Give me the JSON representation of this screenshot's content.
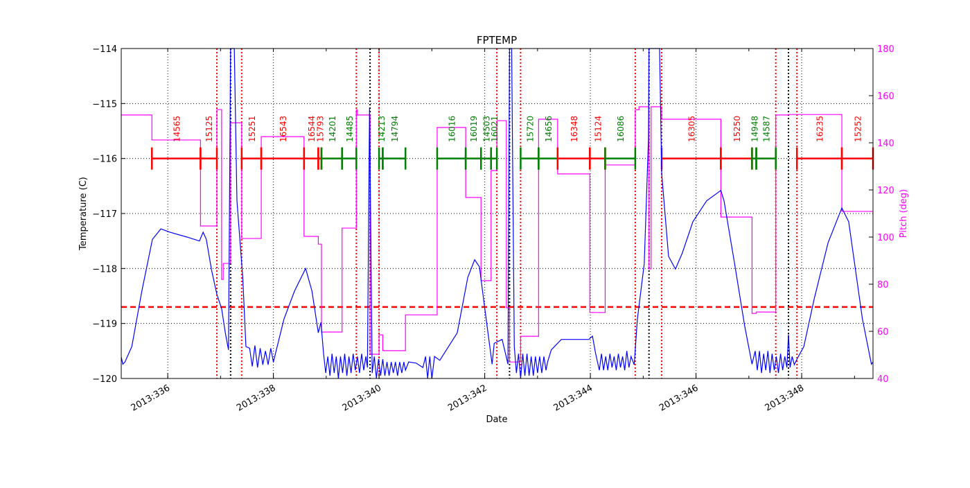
{
  "chart_data": {
    "type": "line",
    "title": "FPTEMP",
    "xlabel": "Date",
    "ylabel": "Temperature (C)",
    "y2label": "Pitch (deg)",
    "xlim": [
      335.12,
      349.35
    ],
    "ylim": [
      -120,
      -114
    ],
    "y2lim": [
      40,
      180
    ],
    "grid": true,
    "x_ticks": [
      {
        "v": 336,
        "label": "2013:336"
      },
      {
        "v": 338,
        "label": "2013:338"
      },
      {
        "v": 340,
        "label": "2013:340"
      },
      {
        "v": 342,
        "label": "2013:342"
      },
      {
        "v": 344,
        "label": "2013:344"
      },
      {
        "v": 346,
        "label": "2013:346"
      },
      {
        "v": 348,
        "label": "2013:348"
      }
    ],
    "y_ticks": [
      -114,
      -115,
      -116,
      -117,
      -118,
      -119,
      -120
    ],
    "y2_ticks": [
      40,
      60,
      80,
      100,
      120,
      140,
      160,
      180
    ],
    "colors": {
      "temperature": "#0000ff",
      "pitch": "#ff00ff",
      "limit": "#ff0000",
      "obsid_red": "#ff0000",
      "obsid_green": "#008000",
      "radzone": "#ff0000",
      "perigee": "#000000"
    },
    "limit_line": -118.7,
    "temperature": [
      [
        335.12,
        -119.61
      ],
      [
        335.15,
        -119.74
      ],
      [
        335.19,
        -119.7
      ],
      [
        335.32,
        -119.42
      ],
      [
        335.51,
        -118.41
      ],
      [
        335.71,
        -117.47
      ],
      [
        335.87,
        -117.28
      ],
      [
        336.04,
        -117.34
      ],
      [
        336.37,
        -117.43
      ],
      [
        336.6,
        -117.5
      ],
      [
        336.67,
        -117.34
      ],
      [
        336.73,
        -117.47
      ],
      [
        336.83,
        -118.03
      ],
      [
        336.93,
        -118.47
      ],
      [
        337.02,
        -118.73
      ],
      [
        337.09,
        -119.17
      ],
      [
        337.15,
        -119.48
      ],
      [
        337.19,
        -113.0
      ],
      [
        337.26,
        -113.0
      ],
      [
        337.31,
        -116.77
      ],
      [
        337.42,
        -118.16
      ],
      [
        337.48,
        -119.42
      ],
      [
        337.55,
        -119.45
      ],
      [
        337.6,
        -119.78
      ],
      [
        337.65,
        -119.4
      ],
      [
        337.7,
        -119.8
      ],
      [
        337.75,
        -119.45
      ],
      [
        337.8,
        -119.75
      ],
      [
        337.85,
        -119.5
      ],
      [
        337.9,
        -119.75
      ],
      [
        337.95,
        -119.45
      ],
      [
        338.0,
        -119.7
      ],
      [
        338.2,
        -118.92
      ],
      [
        338.4,
        -118.41
      ],
      [
        338.61,
        -118.0
      ],
      [
        338.73,
        -118.41
      ],
      [
        338.85,
        -119.17
      ],
      [
        338.9,
        -118.98
      ],
      [
        338.95,
        -119.55
      ],
      [
        338.99,
        -119.9
      ],
      [
        339.03,
        -119.6
      ],
      [
        339.07,
        -119.95
      ],
      [
        339.11,
        -119.55
      ],
      [
        339.15,
        -119.9
      ],
      [
        339.19,
        -119.6
      ],
      [
        339.23,
        -120.0
      ],
      [
        339.27,
        -119.6
      ],
      [
        339.31,
        -119.9
      ],
      [
        339.35,
        -119.55
      ],
      [
        339.39,
        -119.95
      ],
      [
        339.43,
        -119.6
      ],
      [
        339.47,
        -119.9
      ],
      [
        339.51,
        -119.55
      ],
      [
        339.55,
        -119.85
      ],
      [
        339.59,
        -119.6
      ],
      [
        339.63,
        -119.9
      ],
      [
        339.67,
        -119.55
      ],
      [
        339.71,
        -119.85
      ],
      [
        339.75,
        -119.6
      ],
      [
        339.78,
        -119.8
      ],
      [
        339.82,
        -115.07
      ],
      [
        339.87,
        -119.9
      ],
      [
        339.91,
        -119.6
      ],
      [
        339.95,
        -120.0
      ],
      [
        339.99,
        -119.65
      ],
      [
        340.03,
        -119.95
      ],
      [
        340.07,
        -119.65
      ],
      [
        340.11,
        -119.95
      ],
      [
        340.15,
        -119.7
      ],
      [
        340.19,
        -119.95
      ],
      [
        340.23,
        -119.7
      ],
      [
        340.27,
        -119.9
      ],
      [
        340.31,
        -119.7
      ],
      [
        340.35,
        -119.95
      ],
      [
        340.39,
        -119.7
      ],
      [
        340.43,
        -119.9
      ],
      [
        340.47,
        -119.7
      ],
      [
        340.5,
        -119.85
      ],
      [
        340.56,
        -119.7
      ],
      [
        340.7,
        -119.72
      ],
      [
        340.83,
        -119.8
      ],
      [
        340.88,
        -119.6
      ],
      [
        340.92,
        -120.0
      ],
      [
        340.96,
        -119.6
      ],
      [
        341.0,
        -120.0
      ],
      [
        341.05,
        -119.6
      ],
      [
        341.15,
        -119.67
      ],
      [
        341.48,
        -119.17
      ],
      [
        341.68,
        -118.16
      ],
      [
        341.81,
        -117.84
      ],
      [
        341.9,
        -117.97
      ],
      [
        342.01,
        -118.79
      ],
      [
        342.14,
        -119.74
      ],
      [
        342.18,
        -119.36
      ],
      [
        342.33,
        -119.29
      ],
      [
        342.44,
        -119.74
      ],
      [
        342.47,
        -113.0
      ],
      [
        342.51,
        -113.0
      ],
      [
        342.56,
        -119.42
      ],
      [
        342.6,
        -119.9
      ],
      [
        342.64,
        -119.55
      ],
      [
        342.68,
        -120.0
      ],
      [
        342.72,
        -119.55
      ],
      [
        342.76,
        -119.95
      ],
      [
        342.8,
        -119.55
      ],
      [
        342.84,
        -119.95
      ],
      [
        342.88,
        -119.6
      ],
      [
        342.92,
        -119.95
      ],
      [
        342.96,
        -119.6
      ],
      [
        343.0,
        -119.9
      ],
      [
        343.04,
        -119.6
      ],
      [
        343.08,
        -119.9
      ],
      [
        343.12,
        -119.6
      ],
      [
        343.16,
        -119.85
      ],
      [
        343.19,
        -119.7
      ],
      [
        343.26,
        -119.48
      ],
      [
        343.45,
        -119.29
      ],
      [
        343.97,
        -119.29
      ],
      [
        344.04,
        -119.23
      ],
      [
        344.1,
        -119.55
      ],
      [
        344.17,
        -119.85
      ],
      [
        344.21,
        -119.55
      ],
      [
        344.25,
        -119.85
      ],
      [
        344.29,
        -119.6
      ],
      [
        344.33,
        -119.85
      ],
      [
        344.37,
        -119.55
      ],
      [
        344.41,
        -119.8
      ],
      [
        344.45,
        -119.6
      ],
      [
        344.49,
        -119.85
      ],
      [
        344.53,
        -119.55
      ],
      [
        344.57,
        -119.8
      ],
      [
        344.61,
        -119.6
      ],
      [
        344.65,
        -119.85
      ],
      [
        344.69,
        -119.5
      ],
      [
        344.73,
        -119.8
      ],
      [
        344.77,
        -119.6
      ],
      [
        344.83,
        -119.75
      ],
      [
        344.89,
        -118.92
      ],
      [
        345.02,
        -117.91
      ],
      [
        345.1,
        -115.64
      ],
      [
        345.11,
        -113.0
      ],
      [
        345.31,
        -113.0
      ],
      [
        345.35,
        -116.27
      ],
      [
        345.48,
        -117.78
      ],
      [
        345.61,
        -118.01
      ],
      [
        345.74,
        -117.72
      ],
      [
        345.94,
        -117.15
      ],
      [
        346.2,
        -116.77
      ],
      [
        346.47,
        -116.58
      ],
      [
        346.53,
        -116.77
      ],
      [
        346.73,
        -117.91
      ],
      [
        346.92,
        -119.04
      ],
      [
        347.06,
        -119.74
      ],
      [
        347.12,
        -119.5
      ],
      [
        347.16,
        -119.85
      ],
      [
        347.2,
        -119.5
      ],
      [
        347.24,
        -119.9
      ],
      [
        347.28,
        -119.55
      ],
      [
        347.32,
        -119.85
      ],
      [
        347.36,
        -119.5
      ],
      [
        347.4,
        -119.9
      ],
      [
        347.44,
        -119.55
      ],
      [
        347.48,
        -119.85
      ],
      [
        347.52,
        -119.6
      ],
      [
        347.56,
        -119.9
      ],
      [
        347.6,
        -119.55
      ],
      [
        347.64,
        -119.85
      ],
      [
        347.68,
        -119.6
      ],
      [
        347.72,
        -119.8
      ],
      [
        347.75,
        -119.2
      ],
      [
        347.78,
        -119.8
      ],
      [
        347.82,
        -119.6
      ],
      [
        347.86,
        -119.75
      ],
      [
        347.91,
        -119.65
      ],
      [
        348.04,
        -119.42
      ],
      [
        348.24,
        -118.54
      ],
      [
        348.5,
        -117.53
      ],
      [
        348.76,
        -116.9
      ],
      [
        348.89,
        -117.15
      ],
      [
        349.15,
        -118.92
      ],
      [
        349.32,
        -119.74
      ],
      [
        349.35,
        -119.7
      ]
    ],
    "pitch_steps": [
      [
        335.12,
        151.8
      ],
      [
        335.7,
        141.2
      ],
      [
        336.62,
        104.7
      ],
      [
        336.93,
        154.1
      ],
      [
        337.02,
        82
      ],
      [
        337.05,
        88.8
      ],
      [
        337.19,
        148.5
      ],
      [
        337.4,
        99.4
      ],
      [
        337.77,
        142.6
      ],
      [
        338.58,
        100.3
      ],
      [
        338.85,
        97
      ],
      [
        338.91,
        59.7
      ],
      [
        339.3,
        103.8
      ],
      [
        339.57,
        154
      ],
      [
        339.59,
        151.8
      ],
      [
        339.83,
        50.3
      ],
      [
        340.0,
        58.5
      ],
      [
        340.07,
        51.8
      ],
      [
        340.5,
        67
      ],
      [
        341.1,
        146.5
      ],
      [
        341.64,
        116.8
      ],
      [
        341.93,
        81.5
      ],
      [
        342.12,
        128.2
      ],
      [
        342.23,
        149.4
      ],
      [
        342.41,
        70
      ],
      [
        342.47,
        47
      ],
      [
        342.68,
        57.9
      ],
      [
        343.02,
        150
      ],
      [
        343.38,
        126.8
      ],
      [
        343.99,
        68
      ],
      [
        344.28,
        130.6
      ],
      [
        344.85,
        154
      ],
      [
        344.92,
        155.3
      ],
      [
        345.11,
        86.5
      ],
      [
        345.15,
        155.3
      ],
      [
        345.35,
        150
      ],
      [
        346.47,
        108.5
      ],
      [
        347.06,
        67.6
      ],
      [
        347.14,
        68.2
      ],
      [
        347.51,
        151.8
      ],
      [
        347.75,
        152
      ],
      [
        348.76,
        110.9
      ],
      [
        349.35,
        110.9
      ]
    ],
    "obsids": [
      {
        "id": "14565",
        "start": 335.7,
        "end": 336.62,
        "color": "red"
      },
      {
        "id": "15125",
        "start": 336.62,
        "end": 336.93,
        "color": "red"
      },
      {
        "id": "15251",
        "start": 337.4,
        "end": 337.77,
        "color": "red"
      },
      {
        "id": "16543",
        "start": 337.77,
        "end": 338.58,
        "color": "red"
      },
      {
        "id": "16544",
        "start": 338.58,
        "end": 338.85,
        "color": "red"
      },
      {
        "id": "15793",
        "start": 338.85,
        "end": 338.91,
        "color": "red"
      },
      {
        "id": "14201",
        "start": 338.91,
        "end": 339.3,
        "color": "green"
      },
      {
        "id": "14485",
        "start": 339.3,
        "end": 339.57,
        "color": "green"
      },
      {
        "id": "14213",
        "start": 340.0,
        "end": 340.07,
        "color": "green"
      },
      {
        "id": "14794",
        "start": 340.07,
        "end": 340.5,
        "color": "green"
      },
      {
        "id": "16016",
        "start": 341.1,
        "end": 341.64,
        "color": "green"
      },
      {
        "id": "16019",
        "start": 341.64,
        "end": 341.93,
        "color": "green"
      },
      {
        "id": "14503",
        "start": 341.93,
        "end": 342.12,
        "color": "green"
      },
      {
        "id": "16021",
        "start": 342.12,
        "end": 342.23,
        "color": "green"
      },
      {
        "id": "15720",
        "start": 342.68,
        "end": 343.02,
        "color": "green"
      },
      {
        "id": "14656",
        "start": 343.02,
        "end": 343.38,
        "color": "green"
      },
      {
        "id": "16348",
        "start": 343.38,
        "end": 343.99,
        "color": "red"
      },
      {
        "id": "15124",
        "start": 343.99,
        "end": 344.28,
        "color": "red"
      },
      {
        "id": "16086",
        "start": 344.28,
        "end": 344.85,
        "color": "green"
      },
      {
        "id": "16305",
        "start": 345.35,
        "end": 346.47,
        "color": "red"
      },
      {
        "id": "15250",
        "start": 346.47,
        "end": 347.06,
        "color": "red"
      },
      {
        "id": "14948",
        "start": 347.06,
        "end": 347.14,
        "color": "green"
      },
      {
        "id": "14587",
        "start": 347.14,
        "end": 347.51,
        "color": "green"
      },
      {
        "id": "16235",
        "start": 347.91,
        "end": 348.76,
        "color": "red"
      },
      {
        "id": "15252",
        "start": 348.76,
        "end": 349.35,
        "color": "red"
      }
    ],
    "radzone_lines": [
      336.93,
      337.4,
      339.57,
      340.0,
      342.23,
      342.68,
      344.85,
      345.35,
      347.51,
      347.91
    ],
    "perigee_lines": [
      337.19,
      339.83,
      342.47,
      345.11,
      347.75
    ]
  }
}
